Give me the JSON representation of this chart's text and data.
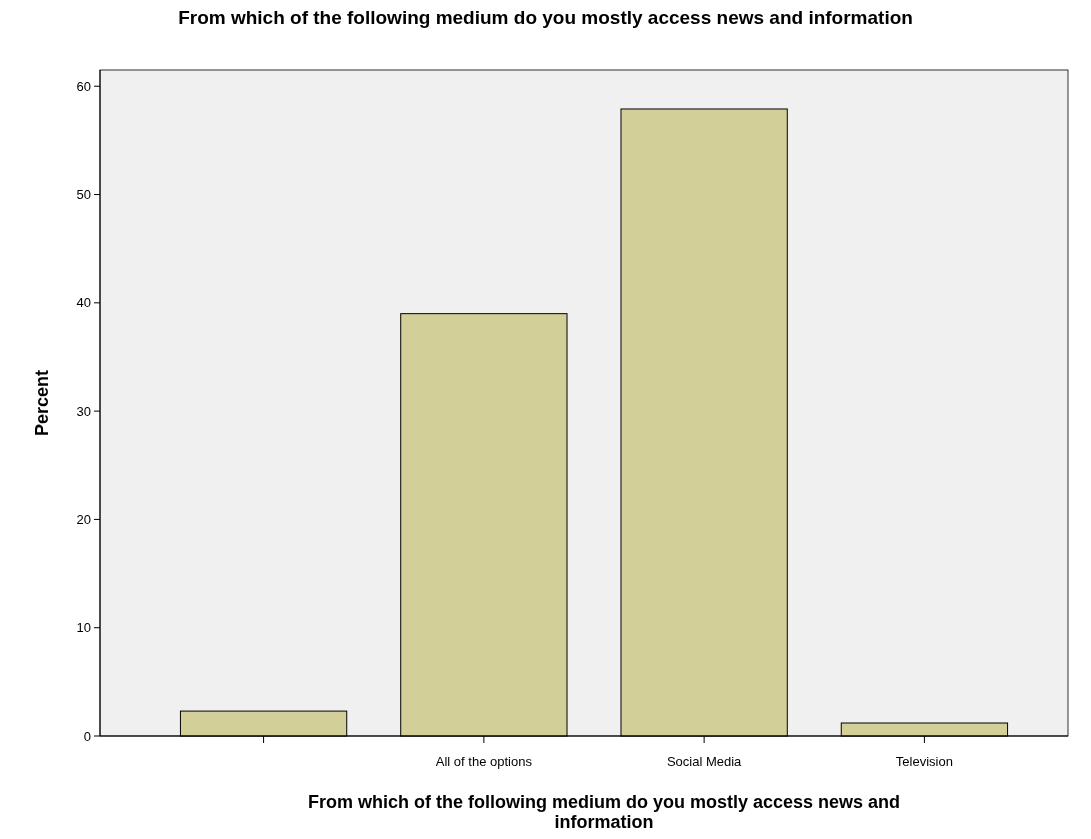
{
  "chart_data": {
    "type": "bar",
    "title": "From which of the following medium do you mostly access news and information",
    "xlabel": "From which of the following medium do you mostly access news and information",
    "ylabel": "Percent",
    "categories": [
      null,
      "All of the options",
      "Social Media",
      "Television"
    ],
    "values": [
      2.3,
      39.0,
      57.9,
      1.2
    ],
    "color": "#d3cf98",
    "ylim": [
      0,
      61.5
    ],
    "yticks": [
      0,
      10,
      20,
      30,
      40,
      50,
      60
    ]
  }
}
